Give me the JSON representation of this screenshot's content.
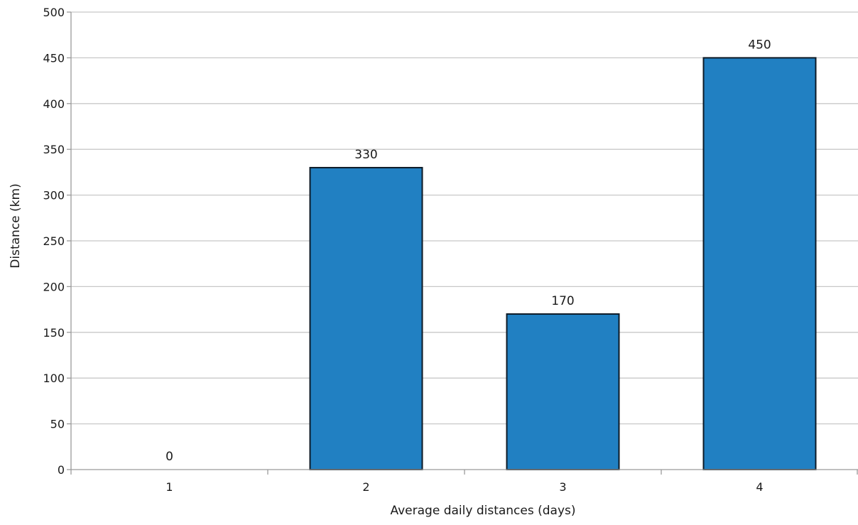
{
  "chart_data": {
    "type": "bar",
    "title": "",
    "xlabel": "Average daily distances (days)",
    "ylabel": "Distance (km)",
    "categories": [
      "1",
      "2",
      "3",
      "4"
    ],
    "values": [
      0,
      330,
      170,
      450
    ],
    "data_labels": [
      "0",
      "330",
      "170",
      "450"
    ],
    "ylim": [
      0,
      500
    ],
    "ytick_step": 50,
    "yticks": [
      "0",
      "50",
      "100",
      "150",
      "200",
      "250",
      "300",
      "350",
      "400",
      "450",
      "500"
    ],
    "grid": true,
    "legend": "none",
    "colors": {
      "bar_fill": "#2180c2",
      "bar_stroke": "#0d1a26"
    }
  }
}
